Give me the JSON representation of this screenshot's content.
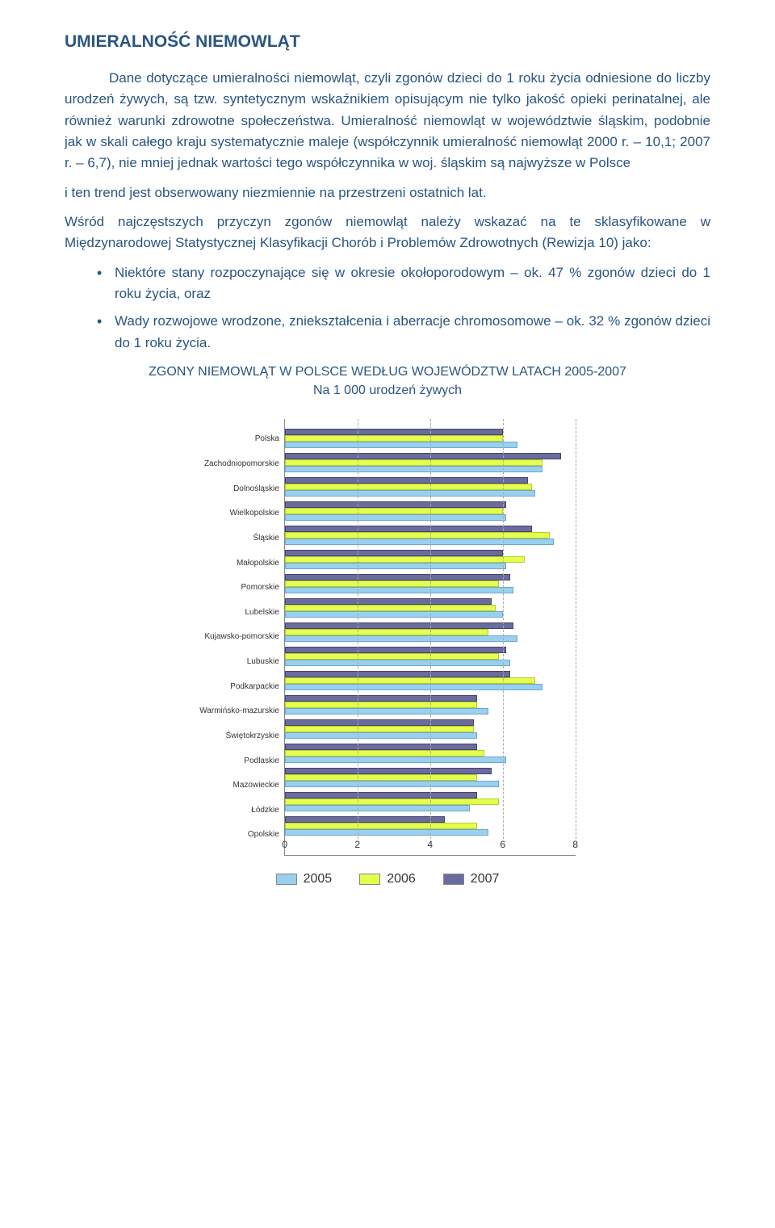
{
  "heading": "UMIERALNOŚĆ NIEMOWLĄT",
  "para1": "Dane dotyczące umieralności niemowląt, czyli zgonów dzieci do 1 roku życia odniesione do liczby urodzeń żywych, są tzw. syntetycznym wskaźnikiem opisującym nie tylko jakość opieki perinatalnej, ale również warunki zdrowotne społeczeństwa. Umieralność niemowląt w województwie śląskim, podobnie jak w skali całego kraju systematycznie maleje (współczynnik umieralność niemowląt 2000 r. – 10,1; 2007 r. – 6,7), nie mniej jednak wartości tego współczynnika w woj. śląskim są najwyższe w Polsce",
  "para2": "i ten trend jest obserwowany niezmiennie na przestrzeni ostatnich lat.",
  "para3": "Wśród najczęstszych przyczyn zgonów niemowląt należy wskazać na te sklasyfikowane w Międzynarodowej Statystycznej Klasyfikacji Chorób i Problemów Zdrowotnych (Rewizja 10) jako:",
  "bullet1": "Niektóre stany rozpoczynające się w okresie okołoporodowym – ok. 47 % zgonów dzieci do 1 roku życia, oraz",
  "bullet2": "Wady rozwojowe wrodzone, zniekształcenia i aberracje chromosomowe – ok. 32 % zgonów dzieci do 1 roku życia.",
  "chart": {
    "title_line1": "ZGONY NIEMOWLĄT W POLSCE WEDŁUG WOJEWÓDZTW LATACH 2005-2007",
    "title_line2": "Na 1 000 urodzeń żywych",
    "type": "horizontal-bar-grouped",
    "xmax": 8,
    "x_ticks": [
      0,
      2,
      4,
      6,
      8
    ],
    "categories": [
      "Polska",
      "Zachodniopomorskie",
      "Dolnośląskie",
      "Wielkopolskie",
      "Śląskie",
      "Małopolskie",
      "Pomorskie",
      "Lubelskie",
      "Kujawsko-pomorskie",
      "Lubuskie",
      "Podkarpackie",
      "Warmińsko-mazurskie",
      "Świętokrzyskie",
      "Podlaskie",
      "Mazowieckie",
      "Łódzkie",
      "Opolskie"
    ],
    "series": {
      "2005": [
        6.4,
        7.1,
        6.9,
        6.1,
        7.4,
        6.1,
        6.3,
        6.0,
        6.4,
        6.2,
        7.1,
        5.6,
        5.3,
        6.1,
        5.9,
        5.1,
        5.6
      ],
      "2006": [
        6.0,
        7.1,
        6.8,
        6.0,
        7.3,
        6.6,
        5.9,
        5.8,
        5.6,
        5.9,
        6.9,
        5.3,
        5.2,
        5.5,
        5.3,
        5.9,
        5.3
      ],
      "2007": [
        6.0,
        7.6,
        6.7,
        6.1,
        6.8,
        6.0,
        6.2,
        5.7,
        6.3,
        6.1,
        6.2,
        5.3,
        5.2,
        5.3,
        5.7,
        5.3,
        4.4
      ]
    },
    "colors": {
      "2005": "#9ad0ef",
      "2006": "#e4ff4d",
      "2007": "#6a6ca0"
    },
    "legend": {
      "l2005": "2005",
      "l2006": "2006",
      "l2007": "2007"
    }
  }
}
